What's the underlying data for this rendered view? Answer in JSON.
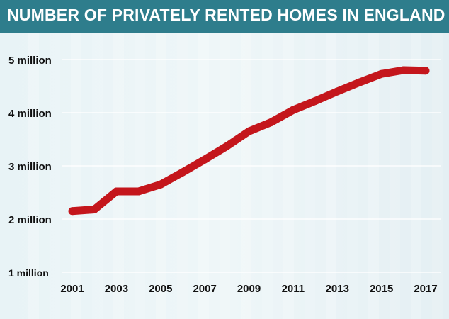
{
  "chart_data": {
    "type": "line",
    "title": "NUMBER OF PRIVATELY RENTED HOMES IN ENGLAND",
    "xlabel": "",
    "ylabel": "",
    "x": [
      2001,
      2002,
      2003,
      2004,
      2005,
      2006,
      2007,
      2008,
      2009,
      2010,
      2011,
      2012,
      2013,
      2014,
      2015,
      2016,
      2017
    ],
    "values": [
      2.15,
      2.18,
      2.52,
      2.52,
      2.65,
      2.88,
      3.12,
      3.37,
      3.65,
      3.82,
      4.05,
      4.22,
      4.4,
      4.57,
      4.73,
      4.8,
      4.79
    ],
    "x_tick_labels": [
      "2001",
      "2003",
      "2005",
      "2007",
      "2009",
      "2011",
      "2013",
      "2015",
      "2017"
    ],
    "y_ticks": [
      1,
      2,
      3,
      4,
      5
    ],
    "y_tick_labels": [
      "1 million",
      "2 million",
      "3 million",
      "4 million",
      "5 million"
    ],
    "xlim": [
      2001,
      2017
    ],
    "ylim": [
      1,
      5
    ],
    "grid": "horizontal",
    "legend": "none",
    "colors": {
      "line": "#c4161c",
      "title_bar": "#2e7d8c",
      "title_text": "#ffffff",
      "grid": "#ffffff",
      "tick_text": "#111111",
      "background": "#eef5f8"
    }
  }
}
